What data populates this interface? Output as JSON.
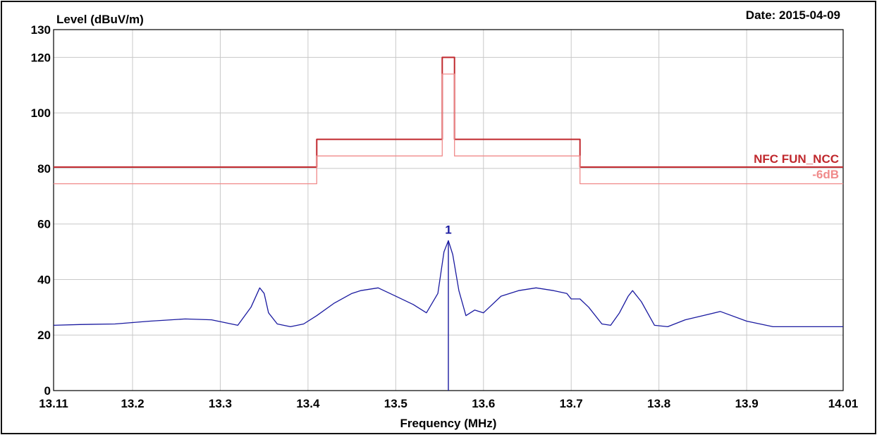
{
  "chart_data": {
    "type": "line",
    "ylabel": "Level (dBuV/m)",
    "xlabel": "Frequency (MHz)",
    "date_label": "Date: 2015-04-09",
    "xlim": [
      13.11,
      14.01
    ],
    "ylim": [
      0,
      130
    ],
    "x_ticks": [
      {
        "value": 13.11,
        "label": "13.11"
      },
      {
        "value": 13.2,
        "label": "13.2"
      },
      {
        "value": 13.3,
        "label": "13.3"
      },
      {
        "value": 13.4,
        "label": "13.4"
      },
      {
        "value": 13.5,
        "label": "13.5"
      },
      {
        "value": 13.6,
        "label": "13.6"
      },
      {
        "value": 13.7,
        "label": "13.7"
      },
      {
        "value": 13.8,
        "label": "13.8"
      },
      {
        "value": 13.9,
        "label": "13.9"
      },
      {
        "value": 14.01,
        "label": "14.01"
      }
    ],
    "y_ticks": [
      {
        "value": 0,
        "label": "0"
      },
      {
        "value": 20,
        "label": "20"
      },
      {
        "value": 40,
        "label": "40"
      },
      {
        "value": 60,
        "label": "60"
      },
      {
        "value": 80,
        "label": "80"
      },
      {
        "value": 100,
        "label": "100"
      },
      {
        "value": 120,
        "label": "120"
      },
      {
        "value": 130,
        "label": "130"
      }
    ],
    "grid": true,
    "series": [
      {
        "name": "NFC FUN_NCC",
        "color": "#c0282d",
        "style": "step",
        "x": [
          13.11,
          13.41,
          13.41,
          13.553,
          13.553,
          13.567,
          13.567,
          13.71,
          13.71,
          14.01
        ],
        "y": [
          80.5,
          80.5,
          90.5,
          90.5,
          120,
          120,
          90.5,
          90.5,
          80.5,
          80.5
        ]
      },
      {
        "name": "-6dB",
        "color": "#f08a8a",
        "style": "step",
        "x": [
          13.11,
          13.41,
          13.41,
          13.553,
          13.553,
          13.567,
          13.567,
          13.71,
          13.71,
          14.01
        ],
        "y": [
          74.5,
          74.5,
          84.5,
          84.5,
          114,
          114,
          84.5,
          84.5,
          74.5,
          74.5
        ]
      },
      {
        "name": "",
        "color": "#1a1aa0",
        "style": "line",
        "x": [
          13.11,
          13.14,
          13.18,
          13.22,
          13.26,
          13.29,
          13.32,
          13.335,
          13.345,
          13.35,
          13.355,
          13.365,
          13.38,
          13.395,
          13.41,
          13.43,
          13.45,
          13.46,
          13.48,
          13.5,
          13.52,
          13.535,
          13.548,
          13.555,
          13.56,
          13.565,
          13.572,
          13.58,
          13.59,
          13.6,
          13.62,
          13.64,
          13.66,
          13.68,
          13.695,
          13.7,
          13.71,
          13.72,
          13.735,
          13.745,
          13.755,
          13.765,
          13.77,
          13.78,
          13.795,
          13.81,
          13.83,
          13.85,
          13.87,
          13.9,
          13.93,
          13.96,
          14.01
        ],
        "y": [
          23.5,
          23.8,
          24,
          25,
          25.8,
          25.5,
          23.5,
          30,
          37,
          35,
          28,
          24,
          23,
          24,
          27,
          31.5,
          35,
          36,
          37,
          34,
          31,
          28,
          35,
          50,
          54,
          49,
          36,
          27,
          29,
          28,
          34,
          36,
          37,
          36,
          35,
          33,
          33,
          30,
          24,
          23.5,
          28,
          34,
          36,
          32,
          23.5,
          23,
          25.5,
          27,
          28.5,
          25,
          23,
          23,
          23
        ]
      }
    ],
    "series_labels": {
      "limit": "NFC FUN_NCC",
      "limit_minus": "-6dB"
    },
    "markers": [
      {
        "label": "1",
        "x": 13.56,
        "y": 54,
        "color": "#1a1aa0"
      }
    ]
  }
}
